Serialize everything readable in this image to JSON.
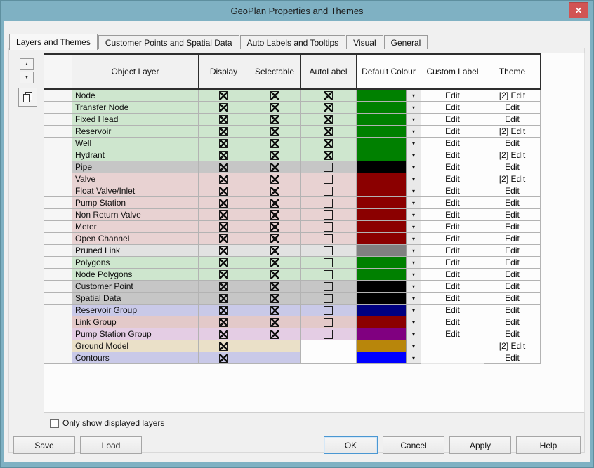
{
  "window": {
    "title": "GeoPlan Properties and Themes",
    "close_glyph": "✕",
    "titlebar_color": "#7fb1c3",
    "close_color": "#d15454"
  },
  "tabs": [
    {
      "label": "Layers and Themes",
      "active": true
    },
    {
      "label": "Customer Points and Spatial Data",
      "active": false
    },
    {
      "label": "Auto Labels and Tooltips",
      "active": false
    },
    {
      "label": "Visual",
      "active": false
    },
    {
      "label": "General",
      "active": false
    }
  ],
  "side_buttons": {
    "up": "▲",
    "down": "▼",
    "copy": "copy"
  },
  "grid": {
    "headers": [
      "Object Layer",
      "Display",
      "Selectable",
      "AutoLabel",
      "Default Colour",
      "Custom Label",
      "Theme"
    ],
    "dropdown_glyph": "▾",
    "rows": [
      {
        "layer": "Node",
        "bg": "#cee6ce",
        "display": "checked",
        "selectable": "checked",
        "autolabel": "checked",
        "colour": "#008000",
        "custom_label": "Edit",
        "theme": "[2] Edit"
      },
      {
        "layer": "Transfer Node",
        "bg": "#cee6ce",
        "display": "checked",
        "selectable": "checked",
        "autolabel": "checked",
        "colour": "#008000",
        "custom_label": "Edit",
        "theme": "Edit"
      },
      {
        "layer": "Fixed Head",
        "bg": "#cee6ce",
        "display": "checked",
        "selectable": "checked",
        "autolabel": "checked",
        "colour": "#008000",
        "custom_label": "Edit",
        "theme": "Edit"
      },
      {
        "layer": "Reservoir",
        "bg": "#cee6ce",
        "display": "checked",
        "selectable": "checked",
        "autolabel": "checked",
        "colour": "#008000",
        "custom_label": "Edit",
        "theme": "[2] Edit"
      },
      {
        "layer": "Well",
        "bg": "#cee6ce",
        "display": "checked",
        "selectable": "checked",
        "autolabel": "checked",
        "colour": "#008000",
        "custom_label": "Edit",
        "theme": "Edit"
      },
      {
        "layer": "Hydrant",
        "bg": "#cee6ce",
        "display": "checked",
        "selectable": "checked",
        "autolabel": "checked",
        "colour": "#008000",
        "custom_label": "Edit",
        "theme": "[2] Edit"
      },
      {
        "layer": "Pipe",
        "bg": "#c6c6c6",
        "display": "checked",
        "selectable": "checked",
        "autolabel": "unchecked",
        "colour": "#000000",
        "custom_label": "Edit",
        "theme": "Edit"
      },
      {
        "layer": "Valve",
        "bg": "#e8d2d2",
        "display": "checked",
        "selectable": "checked",
        "autolabel": "unchecked",
        "colour": "#8b0000",
        "custom_label": "Edit",
        "theme": "[2] Edit"
      },
      {
        "layer": "Float Valve/Inlet",
        "bg": "#e8d2d2",
        "display": "checked",
        "selectable": "checked",
        "autolabel": "unchecked",
        "colour": "#8b0000",
        "custom_label": "Edit",
        "theme": "Edit"
      },
      {
        "layer": "Pump Station",
        "bg": "#e8d2d2",
        "display": "checked",
        "selectable": "checked",
        "autolabel": "unchecked",
        "colour": "#8b0000",
        "custom_label": "Edit",
        "theme": "Edit"
      },
      {
        "layer": "Non Return Valve",
        "bg": "#e8d2d2",
        "display": "checked",
        "selectable": "checked",
        "autolabel": "unchecked",
        "colour": "#8b0000",
        "custom_label": "Edit",
        "theme": "Edit"
      },
      {
        "layer": "Meter",
        "bg": "#e8d2d2",
        "display": "checked",
        "selectable": "checked",
        "autolabel": "unchecked",
        "colour": "#8b0000",
        "custom_label": "Edit",
        "theme": "Edit"
      },
      {
        "layer": "Open Channel",
        "bg": "#e8d2d2",
        "display": "checked",
        "selectable": "checked",
        "autolabel": "unchecked",
        "colour": "#8b0000",
        "custom_label": "Edit",
        "theme": "Edit"
      },
      {
        "layer": "Pruned Link",
        "bg": "#e2e2e2",
        "display": "checked",
        "selectable": "checked",
        "autolabel": "unchecked",
        "colour": "#808080",
        "custom_label": "Edit",
        "theme": "Edit"
      },
      {
        "layer": "Polygons",
        "bg": "#cee6ce",
        "display": "checked",
        "selectable": "checked",
        "autolabel": "unchecked",
        "colour": "#008000",
        "custom_label": "Edit",
        "theme": "Edit"
      },
      {
        "layer": "Node Polygons",
        "bg": "#cee6ce",
        "display": "checked",
        "selectable": "checked",
        "autolabel": "unchecked",
        "colour": "#008000",
        "custom_label": "Edit",
        "theme": "Edit"
      },
      {
        "layer": "Customer Point",
        "bg": "#c6c6c6",
        "display": "checked",
        "selectable": "checked",
        "autolabel": "unchecked",
        "colour": "#000000",
        "custom_label": "Edit",
        "theme": "Edit"
      },
      {
        "layer": "Spatial Data",
        "bg": "#c6c6c6",
        "display": "checked",
        "selectable": "checked",
        "autolabel": "unchecked",
        "colour": "#000000",
        "custom_label": "Edit",
        "theme": "Edit"
      },
      {
        "layer": "Reservoir Group",
        "bg": "#c9c9e8",
        "display": "checked",
        "selectable": "checked",
        "autolabel": "unchecked",
        "colour": "#000080",
        "custom_label": "Edit",
        "theme": "Edit"
      },
      {
        "layer": "Link Group",
        "bg": "#e3c9c9",
        "display": "checked",
        "selectable": "checked",
        "autolabel": "unchecked",
        "colour": "#8b0000",
        "custom_label": "Edit",
        "theme": "Edit"
      },
      {
        "layer": "Pump Station Group",
        "bg": "#e4cde4",
        "display": "checked",
        "selectable": "checked",
        "autolabel": "unchecked",
        "colour": "#800080",
        "custom_label": "Edit",
        "theme": "Edit"
      },
      {
        "layer": "Ground Model",
        "bg": "#eae0c8",
        "display": "checked",
        "selectable": "none",
        "autolabel": "none",
        "colour": "#b8860b",
        "custom_label": "",
        "theme": "[2] Edit"
      },
      {
        "layer": "Contours",
        "bg": "#c9c9e8",
        "display": "checked",
        "selectable": "none",
        "autolabel": "none",
        "colour": "#0000ff",
        "custom_label": "",
        "theme": "Edit"
      }
    ]
  },
  "footer": {
    "only_show_displayed": "Only show displayed layers",
    "save": "Save",
    "load": "Load",
    "ok": "OK",
    "cancel": "Cancel",
    "apply": "Apply",
    "help": "Help"
  }
}
